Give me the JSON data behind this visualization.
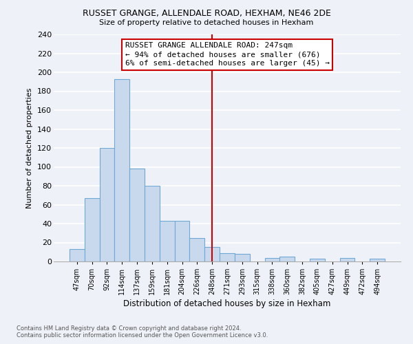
{
  "title1": "RUSSET GRANGE, ALLENDALE ROAD, HEXHAM, NE46 2DE",
  "title2": "Size of property relative to detached houses in Hexham",
  "xlabel": "Distribution of detached houses by size in Hexham",
  "ylabel": "Number of detached properties",
  "bin_labels": [
    "47sqm",
    "70sqm",
    "92sqm",
    "114sqm",
    "137sqm",
    "159sqm",
    "181sqm",
    "204sqm",
    "226sqm",
    "248sqm",
    "271sqm",
    "293sqm",
    "315sqm",
    "338sqm",
    "360sqm",
    "382sqm",
    "405sqm",
    "427sqm",
    "449sqm",
    "472sqm",
    "494sqm"
  ],
  "bar_heights": [
    13,
    67,
    120,
    193,
    98,
    80,
    43,
    43,
    25,
    15,
    9,
    8,
    0,
    4,
    5,
    0,
    3,
    0,
    4,
    0,
    3
  ],
  "bar_color": "#c8d9ee",
  "bar_edge_color": "#6fa8d4",
  "vline_x": 9.0,
  "vline_color": "#cc0000",
  "annotation_title": "RUSSET GRANGE ALLENDALE ROAD: 247sqm",
  "annotation_line1": "← 94% of detached houses are smaller (676)",
  "annotation_line2": "6% of semi-detached houses are larger (45) →",
  "annotation_box_color": "#ffffff",
  "annotation_box_edge": "#cc0000",
  "ylim": [
    0,
    240
  ],
  "yticks": [
    0,
    20,
    40,
    60,
    80,
    100,
    120,
    140,
    160,
    180,
    200,
    220,
    240
  ],
  "footer1": "Contains HM Land Registry data © Crown copyright and database right 2024.",
  "footer2": "Contains public sector information licensed under the Open Government Licence v3.0.",
  "bg_color": "#eef2f8",
  "plot_bg_color": "#eef2f8",
  "grid_color": "#ffffff"
}
